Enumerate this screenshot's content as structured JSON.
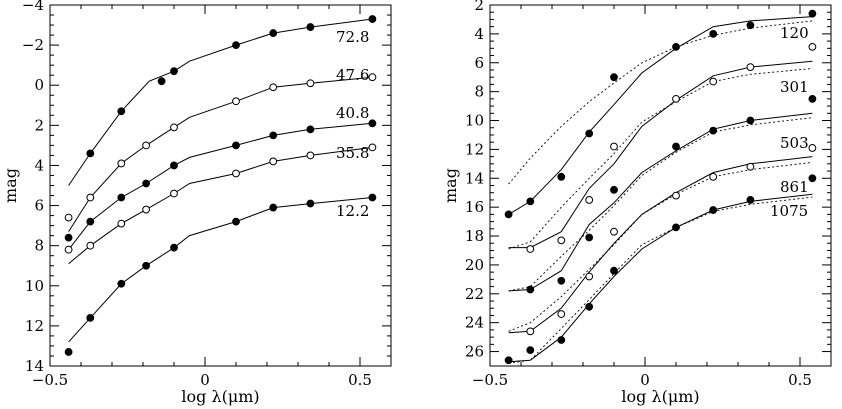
{
  "chart_data": [
    {
      "type": "scatter",
      "title": "",
      "xlabel": "log λ(μm)",
      "ylabel": "mag",
      "xlim": [
        -0.5,
        0.6
      ],
      "ylim": [
        14,
        -4
      ],
      "y_inverted": true,
      "xticks": [
        -0.5,
        0,
        0.5
      ],
      "xtick_labels": [
        "−0.5",
        "0",
        "0.5"
      ],
      "yticks": [
        -4,
        -2,
        0,
        2,
        4,
        6,
        8,
        10,
        12,
        14
      ],
      "ytick_labels": [
        "−4",
        "−2",
        "0",
        "2",
        "4",
        "6",
        "8",
        "10",
        "12",
        "14"
      ],
      "grid": false,
      "series": [
        {
          "name": "72.8",
          "marker": "filled",
          "points": {
            "x": [
              -0.37,
              -0.27,
              -0.14,
              -0.1,
              0.1,
              0.22,
              0.34,
              0.54
            ],
            "y": [
              3.4,
              1.3,
              -0.2,
              -0.7,
              -2.0,
              -2.6,
              -2.9,
              -3.3
            ]
          },
          "model": {
            "x": [
              -0.44,
              -0.37,
              -0.27,
              -0.18,
              -0.1,
              -0.05,
              0.1,
              0.22,
              0.34,
              0.54
            ],
            "y": [
              5.0,
              3.4,
              1.3,
              -0.2,
              -0.7,
              -1.2,
              -2.0,
              -2.6,
              -2.9,
              -3.3
            ]
          }
        },
        {
          "name": "47.6",
          "marker": "open",
          "points": {
            "x": [
              -0.44,
              -0.37,
              -0.27,
              -0.19,
              -0.1,
              0.1,
              0.22,
              0.34,
              0.54
            ],
            "y": [
              6.6,
              5.6,
              3.9,
              3.0,
              2.1,
              0.8,
              0.1,
              -0.1,
              -0.4
            ]
          },
          "model": {
            "x": [
              -0.44,
              -0.37,
              -0.27,
              -0.19,
              -0.1,
              -0.05,
              0.1,
              0.22,
              0.34,
              0.54
            ],
            "y": [
              7.3,
              5.6,
              3.9,
              3.0,
              2.1,
              1.6,
              0.8,
              0.1,
              -0.1,
              -0.4
            ]
          }
        },
        {
          "name": "40.8",
          "marker": "filled",
          "points": {
            "x": [
              -0.44,
              -0.37,
              -0.27,
              -0.19,
              -0.1,
              0.1,
              0.22,
              0.34,
              0.54
            ],
            "y": [
              7.6,
              6.8,
              5.6,
              4.9,
              4.0,
              3.0,
              2.5,
              2.2,
              1.9
            ]
          },
          "model": {
            "x": [
              -0.44,
              -0.37,
              -0.27,
              -0.19,
              -0.1,
              -0.05,
              0.1,
              0.22,
              0.34,
              0.54
            ],
            "y": [
              8.2,
              6.8,
              5.6,
              4.9,
              4.0,
              3.6,
              3.0,
              2.5,
              2.2,
              1.9
            ]
          }
        },
        {
          "name": "35.8",
          "marker": "open",
          "points": {
            "x": [
              -0.44,
              -0.37,
              -0.27,
              -0.19,
              -0.1,
              0.1,
              0.22,
              0.34,
              0.54
            ],
            "y": [
              8.2,
              8.0,
              6.9,
              6.2,
              5.4,
              4.4,
              3.8,
              3.5,
              3.1
            ]
          },
          "model": {
            "x": [
              -0.44,
              -0.37,
              -0.27,
              -0.19,
              -0.1,
              -0.05,
              0.1,
              0.22,
              0.34,
              0.54
            ],
            "y": [
              8.9,
              8.0,
              6.9,
              6.2,
              5.4,
              4.9,
              4.4,
              3.8,
              3.5,
              3.1
            ]
          }
        },
        {
          "name": "12.2",
          "marker": "filled",
          "points": {
            "x": [
              -0.44,
              -0.37,
              -0.27,
              -0.19,
              -0.1,
              0.1,
              0.22,
              0.34,
              0.54
            ],
            "y": [
              13.3,
              11.6,
              9.9,
              9.0,
              8.1,
              6.8,
              6.1,
              5.9,
              5.6
            ]
          },
          "model": {
            "x": [
              -0.44,
              -0.37,
              -0.27,
              -0.19,
              -0.1,
              -0.05,
              0.1,
              0.22,
              0.34,
              0.54
            ],
            "y": [
              12.8,
              11.6,
              9.9,
              9.0,
              8.1,
              7.5,
              6.8,
              6.1,
              5.9,
              5.6
            ]
          }
        }
      ]
    },
    {
      "type": "scatter",
      "title": "",
      "xlabel": "log λ(μm)",
      "ylabel": "mag",
      "xlim": [
        -0.5,
        0.6
      ],
      "ylim": [
        27,
        2
      ],
      "y_inverted": true,
      "xticks": [
        -0.5,
        0,
        0.5
      ],
      "xtick_labels": [
        "−0.5",
        "0",
        "0.5"
      ],
      "yticks": [
        2,
        4,
        6,
        8,
        10,
        12,
        14,
        16,
        18,
        20,
        22,
        24,
        26
      ],
      "ytick_labels": [
        "2",
        "4",
        "6",
        "8",
        "10",
        "12",
        "14",
        "16",
        "18",
        "20",
        "22",
        "24",
        "26"
      ],
      "grid": false,
      "series": [
        {
          "name": "120",
          "marker": "filled",
          "points": {
            "x": [
              -0.44,
              -0.37,
              -0.27,
              -0.18,
              -0.1,
              0.1,
              0.22,
              0.34,
              0.54
            ],
            "y": [
              16.5,
              15.6,
              13.9,
              10.9,
              7.0,
              4.9,
              4.0,
              3.4,
              2.6
            ]
          },
          "model": {
            "x": [
              -0.44,
              -0.37,
              -0.27,
              -0.18,
              -0.1,
              -0.01,
              0.1,
              0.22,
              0.34,
              0.54
            ],
            "y": [
              16.5,
              15.6,
              13.4,
              10.8,
              8.9,
              6.7,
              5.0,
              3.5,
              3.1,
              2.8
            ]
          },
          "model_dotted": {
            "x": [
              -0.44,
              -0.37,
              -0.27,
              -0.18,
              -0.1,
              -0.01,
              0.1,
              0.22,
              0.34,
              0.54
            ],
            "y": [
              14.4,
              12.6,
              10.4,
              8.7,
              7.4,
              6.0,
              4.9,
              4.1,
              3.6,
              3.1
            ]
          }
        },
        {
          "name": "301",
          "marker": "open",
          "points": {
            "x": [
              -0.37,
              -0.27,
              -0.18,
              -0.1,
              0.1,
              0.22,
              0.34,
              0.54
            ],
            "y": [
              18.9,
              18.3,
              15.5,
              11.8,
              8.5,
              7.3,
              6.3,
              4.9
            ]
          },
          "model": {
            "x": [
              -0.44,
              -0.37,
              -0.27,
              -0.18,
              -0.1,
              -0.01,
              0.1,
              0.22,
              0.34,
              0.54
            ],
            "y": [
              18.8,
              18.8,
              17.7,
              14.7,
              13.0,
              10.4,
              8.6,
              6.9,
              6.3,
              5.9
            ]
          },
          "model_dotted": {
            "x": [
              -0.44,
              -0.37,
              -0.27,
              -0.18,
              -0.1,
              -0.01,
              0.1,
              0.22,
              0.34,
              0.54
            ],
            "y": [
              18.9,
              18.4,
              16.0,
              14.0,
              12.3,
              10.1,
              8.7,
              7.3,
              6.8,
              6.4
            ]
          }
        },
        {
          "name": "503",
          "marker": "filled",
          "points": {
            "x": [
              -0.37,
              -0.27,
              -0.18,
              -0.1,
              0.1,
              0.22,
              0.34,
              0.54
            ],
            "y": [
              21.7,
              21.1,
              18.1,
              14.8,
              11.8,
              10.7,
              10.0,
              8.5
            ]
          },
          "model": {
            "x": [
              -0.44,
              -0.37,
              -0.27,
              -0.18,
              -0.1,
              -0.01,
              0.1,
              0.22,
              0.34,
              0.54
            ],
            "y": [
              21.8,
              21.7,
              20.4,
              17.2,
              15.7,
              13.6,
              12.1,
              10.6,
              10.0,
              9.5
            ]
          },
          "model_dotted": {
            "x": [
              -0.44,
              -0.37,
              -0.27,
              -0.18,
              -0.1,
              -0.01,
              0.1,
              0.22,
              0.34,
              0.54
            ],
            "y": [
              21.8,
              21.5,
              19.4,
              17.6,
              15.9,
              13.8,
              12.2,
              10.8,
              10.3,
              9.8
            ]
          }
        },
        {
          "name": "861",
          "marker": "open",
          "points": {
            "x": [
              -0.37,
              -0.27,
              -0.18,
              -0.1,
              0.1,
              0.22,
              0.34,
              0.54
            ],
            "y": [
              24.6,
              23.4,
              20.8,
              17.7,
              15.2,
              13.9,
              13.2,
              11.9
            ]
          },
          "model": {
            "x": [
              -0.44,
              -0.37,
              -0.27,
              -0.18,
              -0.1,
              -0.01,
              0.1,
              0.22,
              0.34,
              0.54
            ],
            "y": [
              24.7,
              24.6,
              23.0,
              20.5,
              18.5,
              16.5,
              15.0,
              13.6,
              13.0,
              12.5
            ]
          },
          "model_dotted": {
            "x": [
              -0.44,
              -0.37,
              -0.27,
              -0.18,
              -0.1,
              -0.01,
              0.1,
              0.22,
              0.34,
              0.54
            ],
            "y": [
              24.6,
              24.0,
              22.2,
              20.3,
              18.6,
              16.5,
              15.1,
              13.9,
              13.4,
              12.9
            ]
          }
        },
        {
          "name": "1075",
          "marker": "filled",
          "points": {
            "x": [
              -0.44,
              -0.37,
              -0.27,
              -0.18,
              -0.1,
              0.1,
              0.22,
              0.34,
              0.54
            ],
            "y": [
              26.6,
              25.9,
              25.2,
              22.9,
              20.4,
              17.4,
              16.2,
              15.5,
              14.0
            ]
          },
          "model": {
            "x": [
              -0.44,
              -0.37,
              -0.27,
              -0.18,
              -0.1,
              -0.01,
              0.1,
              0.22,
              0.34,
              0.54
            ],
            "y": [
              26.7,
              26.6,
              25.0,
              22.7,
              20.8,
              18.9,
              17.4,
              16.2,
              15.6,
              15.1
            ]
          },
          "model_dotted": {
            "x": [
              -0.44,
              -0.37,
              -0.27,
              -0.18,
              -0.1,
              -0.01,
              0.1,
              0.22,
              0.34,
              0.54
            ],
            "y": [
              26.8,
              26.6,
              24.4,
              22.4,
              20.6,
              18.6,
              17.4,
              16.3,
              15.8,
              15.3
            ]
          }
        }
      ]
    }
  ]
}
